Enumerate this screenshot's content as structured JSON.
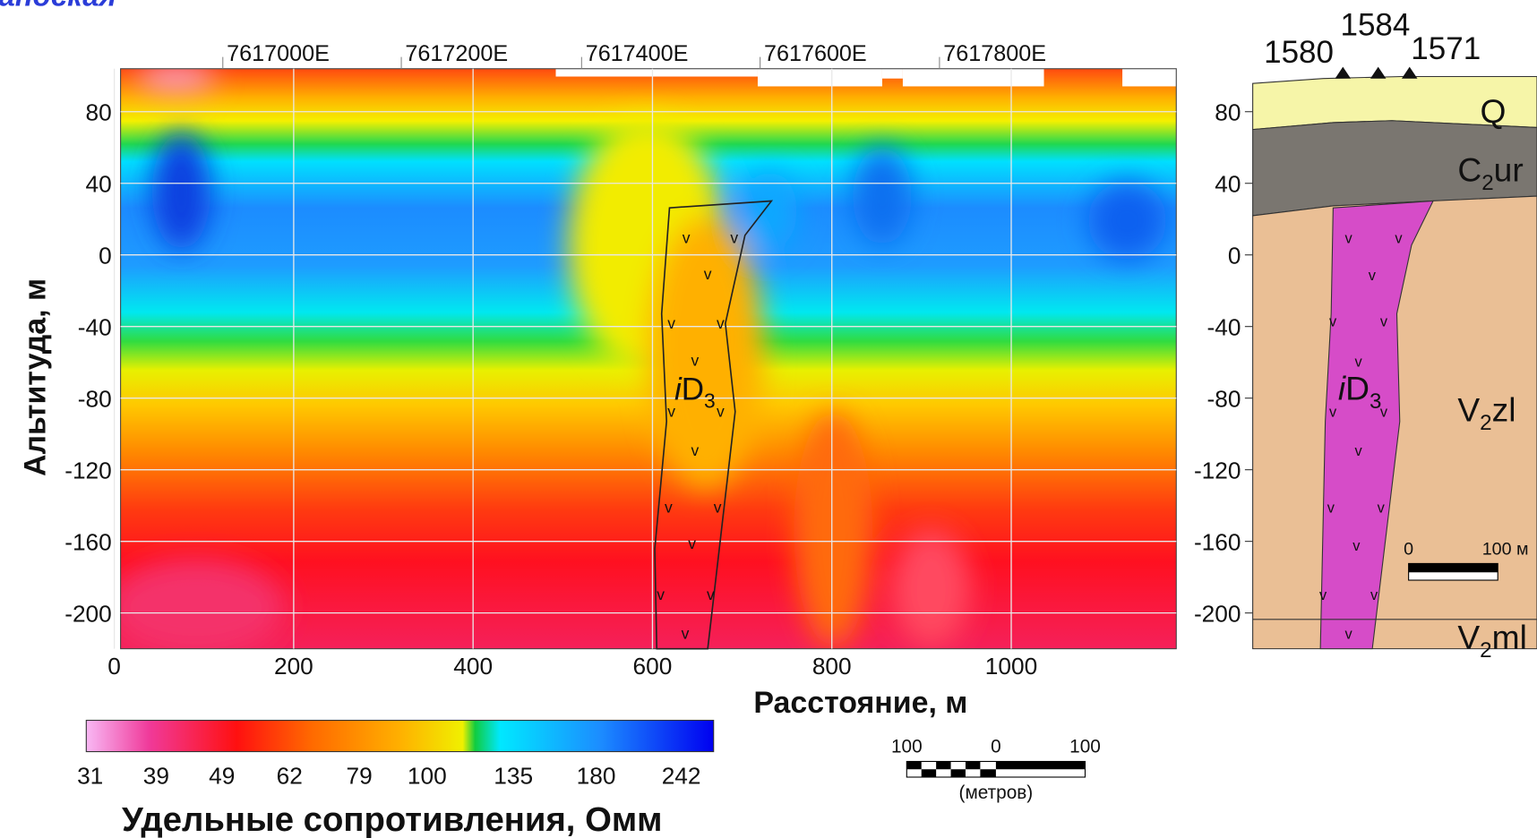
{
  "header": {
    "title": "ландская"
  },
  "section": {
    "x_label": "Расстояние, м",
    "y_label": "Альтитуда, м",
    "xlim": [
      7,
      1184
    ],
    "ylim": [
      -220,
      104
    ],
    "xticks": [
      0,
      200,
      400,
      600,
      800,
      1000
    ],
    "yticks": [
      80,
      40,
      0,
      -40,
      -80,
      -120,
      -160,
      -200
    ],
    "grid": true,
    "top_ticks": [
      {
        "value": 121,
        "label": "7617000E"
      },
      {
        "value": 320,
        "label": "7617200E"
      },
      {
        "value": 521,
        "label": "7617400E"
      },
      {
        "value": 720,
        "label": "7617600E"
      },
      {
        "value": 920,
        "label": "7617800E"
      }
    ],
    "body_label": {
      "prefix": "i",
      "main": "D",
      "sub": "3"
    }
  },
  "colorbar": {
    "title": "Удельные сопротивления, Омм",
    "log": true,
    "lim": [
      31,
      242
    ],
    "ticks": [
      31,
      39,
      49,
      62,
      79,
      100,
      135,
      180,
      242
    ]
  },
  "scale_bar": {
    "labels": [
      "100",
      "0",
      "100"
    ],
    "unit": "(метров)"
  },
  "geology": {
    "stations": [
      "1580",
      "1584",
      "1571"
    ],
    "yticks": [
      80,
      40,
      0,
      -40,
      -80,
      -120,
      -160,
      -200
    ],
    "units": [
      {
        "main": "Q"
      },
      {
        "main": "C",
        "sub": "2",
        "tail": "ur"
      },
      {
        "prefix": "i",
        "main": "D",
        "sub": "3"
      },
      {
        "main": "V",
        "sub": "2",
        "tail": "zl"
      },
      {
        "main": "V",
        "sub": "2",
        "tail": "ml"
      }
    ],
    "scale": {
      "labels": [
        "0",
        "100 м"
      ]
    }
  }
}
